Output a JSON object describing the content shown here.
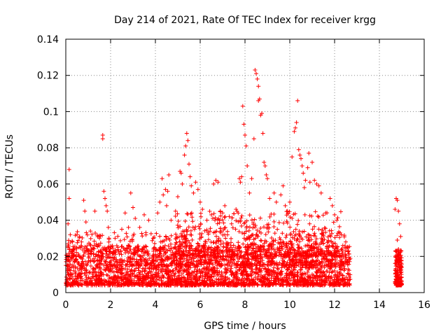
{
  "chart_data": {
    "type": "scatter",
    "title": "Day 214 of 2021, Rate Of TEC Index for receiver krgg",
    "xlabel": "GPS time / hours",
    "ylabel": "ROTI / TECUs",
    "xlim": [
      0,
      16
    ],
    "ylim": [
      0,
      0.14
    ],
    "xticks": [
      0,
      2,
      4,
      6,
      8,
      10,
      12,
      14,
      16
    ],
    "yticks": [
      0,
      0.02,
      0.04,
      0.06,
      0.08,
      0.1,
      0.12,
      0.14
    ],
    "xtick_labels": [
      "0",
      "2",
      "4",
      "6",
      "8",
      "10",
      "12",
      "14",
      "16"
    ],
    "ytick_labels": [
      "0",
      "0.02",
      "0.04",
      "0.06",
      "0.08",
      "0.1",
      "0.12",
      "0.14"
    ],
    "grid": true,
    "marker": "+",
    "color": "#ff0000",
    "series": [
      {
        "name": "ROTI",
        "notes": "Dense baseline ~0.005-0.025 from 0 to 12.7 h and 14.7 to 15.0 h; sampled outliers listed below.",
        "points": [
          [
            0.15,
            0.068
          ],
          [
            0.15,
            0.052
          ],
          [
            0.1,
            0.038
          ],
          [
            0.2,
            0.032
          ],
          [
            0.3,
            0.028
          ],
          [
            0.5,
            0.032
          ],
          [
            0.7,
            0.028
          ],
          [
            0.8,
            0.051
          ],
          [
            0.85,
            0.045
          ],
          [
            0.9,
            0.039
          ],
          [
            1.1,
            0.034
          ],
          [
            1.3,
            0.045
          ],
          [
            1.5,
            0.03
          ],
          [
            1.65,
            0.087
          ],
          [
            1.65,
            0.085
          ],
          [
            1.7,
            0.056
          ],
          [
            1.75,
            0.052
          ],
          [
            1.8,
            0.048
          ],
          [
            1.85,
            0.045
          ],
          [
            1.9,
            0.036
          ],
          [
            2.2,
            0.03
          ],
          [
            2.5,
            0.035
          ],
          [
            2.65,
            0.044
          ],
          [
            2.8,
            0.036
          ],
          [
            2.9,
            0.055
          ],
          [
            3.0,
            0.047
          ],
          [
            3.1,
            0.041
          ],
          [
            3.3,
            0.036
          ],
          [
            3.5,
            0.043
          ],
          [
            3.7,
            0.04
          ],
          [
            3.9,
            0.03
          ],
          [
            4.1,
            0.044
          ],
          [
            4.2,
            0.05
          ],
          [
            4.3,
            0.063
          ],
          [
            4.35,
            0.054
          ],
          [
            4.45,
            0.057
          ],
          [
            4.5,
            0.048
          ],
          [
            4.55,
            0.056
          ],
          [
            4.6,
            0.065
          ],
          [
            4.7,
            0.04
          ],
          [
            4.9,
            0.045
          ],
          [
            5.0,
            0.053
          ],
          [
            5.1,
            0.067
          ],
          [
            5.15,
            0.066
          ],
          [
            5.2,
            0.06
          ],
          [
            5.3,
            0.076
          ],
          [
            5.35,
            0.081
          ],
          [
            5.4,
            0.088
          ],
          [
            5.45,
            0.084
          ],
          [
            5.5,
            0.071
          ],
          [
            5.55,
            0.064
          ],
          [
            5.6,
            0.059
          ],
          [
            5.7,
            0.055
          ],
          [
            5.8,
            0.061
          ],
          [
            5.9,
            0.057
          ],
          [
            6.0,
            0.05
          ],
          [
            6.1,
            0.046
          ],
          [
            6.3,
            0.04
          ],
          [
            6.5,
            0.043
          ],
          [
            6.6,
            0.06
          ],
          [
            6.7,
            0.062
          ],
          [
            6.8,
            0.061
          ],
          [
            6.9,
            0.045
          ],
          [
            7.0,
            0.044
          ],
          [
            7.1,
            0.048
          ],
          [
            7.3,
            0.042
          ],
          [
            7.4,
            0.038
          ],
          [
            7.6,
            0.046
          ],
          [
            7.75,
            0.063
          ],
          [
            7.8,
            0.061
          ],
          [
            7.85,
            0.064
          ],
          [
            7.9,
            0.103
          ],
          [
            7.95,
            0.093
          ],
          [
            8.0,
            0.087
          ],
          [
            8.05,
            0.081
          ],
          [
            8.1,
            0.07
          ],
          [
            8.2,
            0.055
          ],
          [
            8.3,
            0.063
          ],
          [
            8.4,
            0.085
          ],
          [
            8.45,
            0.123
          ],
          [
            8.5,
            0.121
          ],
          [
            8.55,
            0.118
          ],
          [
            8.6,
            0.114
          ],
          [
            8.6,
            0.106
          ],
          [
            8.65,
            0.107
          ],
          [
            8.7,
            0.098
          ],
          [
            8.75,
            0.099
          ],
          [
            8.8,
            0.088
          ],
          [
            8.85,
            0.072
          ],
          [
            8.9,
            0.07
          ],
          [
            8.95,
            0.065
          ],
          [
            9.0,
            0.063
          ],
          [
            9.1,
            0.052
          ],
          [
            9.3,
            0.055
          ],
          [
            9.4,
            0.05
          ],
          [
            9.6,
            0.054
          ],
          [
            9.7,
            0.059
          ],
          [
            9.8,
            0.048
          ],
          [
            9.9,
            0.045
          ],
          [
            10.0,
            0.05
          ],
          [
            10.1,
            0.075
          ],
          [
            10.2,
            0.089
          ],
          [
            10.25,
            0.091
          ],
          [
            10.3,
            0.094
          ],
          [
            10.35,
            0.106
          ],
          [
            10.4,
            0.079
          ],
          [
            10.45,
            0.076
          ],
          [
            10.5,
            0.074
          ],
          [
            10.55,
            0.07
          ],
          [
            10.6,
            0.066
          ],
          [
            10.65,
            0.058
          ],
          [
            10.7,
            0.062
          ],
          [
            10.8,
            0.069
          ],
          [
            10.85,
            0.077
          ],
          [
            10.9,
            0.061
          ],
          [
            11.0,
            0.072
          ],
          [
            11.1,
            0.062
          ],
          [
            11.2,
            0.06
          ],
          [
            11.3,
            0.059
          ],
          [
            11.4,
            0.055
          ],
          [
            11.6,
            0.044
          ],
          [
            11.8,
            0.052
          ],
          [
            11.9,
            0.048
          ],
          [
            12.0,
            0.043
          ],
          [
            12.1,
            0.04
          ],
          [
            12.3,
            0.032
          ],
          [
            12.5,
            0.028
          ],
          [
            12.6,
            0.025
          ],
          [
            14.7,
            0.046
          ],
          [
            14.75,
            0.052
          ],
          [
            14.8,
            0.051
          ],
          [
            14.85,
            0.045
          ],
          [
            14.9,
            0.038
          ],
          [
            14.95,
            0.031
          ],
          [
            14.8,
            0.029
          ],
          [
            14.85,
            0.024
          ]
        ]
      }
    ]
  }
}
